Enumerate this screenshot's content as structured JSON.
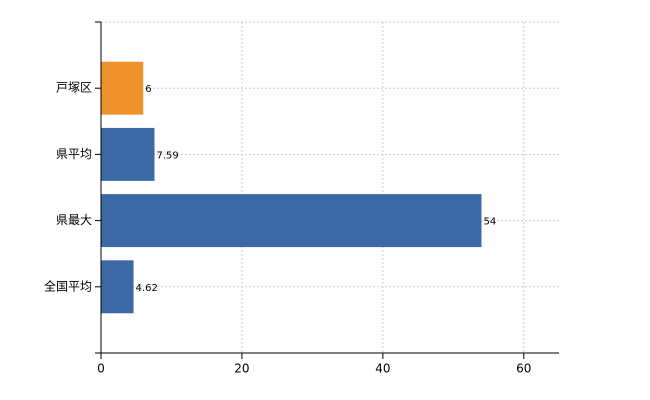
{
  "chart_data": {
    "type": "hbar",
    "categories": [
      "戸塚区",
      "県平均",
      "県最大",
      "全国平均"
    ],
    "values": [
      6,
      7.59,
      54,
      4.62
    ],
    "colors": [
      "#f0922b",
      "#3a69a5",
      "#3a69a5",
      "#3a69a5"
    ],
    "xlim": [
      0,
      65
    ],
    "xticks": [
      0,
      20,
      40,
      60
    ],
    "grid": true
  }
}
